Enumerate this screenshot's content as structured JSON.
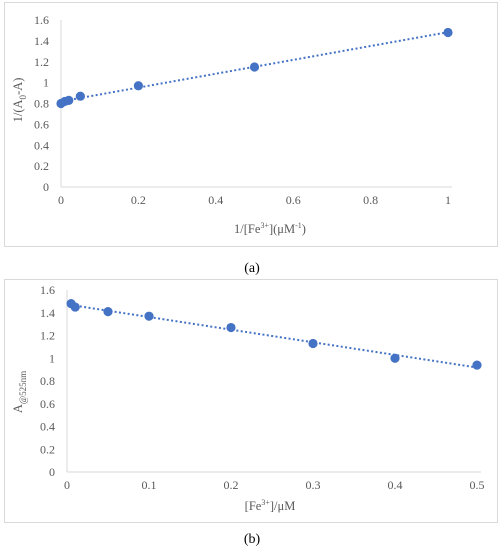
{
  "colors": {
    "series": "#4472c4",
    "frame": "#d9d9d9",
    "text": "#595959"
  },
  "chart_data": [
    {
      "type": "scatter",
      "caption": "(a)",
      "xlabel_parts": [
        "1/[Fe",
        "3+",
        "](μM",
        "-1",
        ")"
      ],
      "ylabel_parts": [
        "1/(A",
        "0",
        "-A)"
      ],
      "xlim": [
        0,
        1
      ],
      "ylim": [
        0,
        1.6
      ],
      "xticks": [
        0,
        0.2,
        0.4,
        0.6,
        0.8,
        1
      ],
      "xtick_labels": [
        "0",
        "0.2",
        "0.4",
        "0.6",
        "0.8",
        "1"
      ],
      "yticks": [
        0,
        0.2,
        0.4,
        0.6,
        0.8,
        1,
        1.2,
        1.4,
        1.6
      ],
      "ytick_labels": [
        "0",
        "0.2",
        "0.4",
        "0.6",
        "0.8",
        "1",
        "1.2",
        "1.4",
        "1.6"
      ],
      "grid": false,
      "trendline": "linear",
      "points": [
        {
          "x": 0.0,
          "y": 0.8
        },
        {
          "x": 0.01,
          "y": 0.82
        },
        {
          "x": 0.02,
          "y": 0.83
        },
        {
          "x": 0.05,
          "y": 0.87
        },
        {
          "x": 0.2,
          "y": 0.97
        },
        {
          "x": 0.5,
          "y": 1.15
        },
        {
          "x": 1.0,
          "y": 1.48
        }
      ]
    },
    {
      "type": "scatter",
      "caption": "(b)",
      "xlabel_parts": [
        "[Fe",
        "3+",
        "]/μM"
      ],
      "ylabel_parts": [
        "A",
        "@525nm"
      ],
      "xlim": [
        0,
        0.5
      ],
      "ylim": [
        0,
        1.6
      ],
      "xticks": [
        0,
        0.1,
        0.2,
        0.3,
        0.4,
        0.5
      ],
      "xtick_labels": [
        "0",
        "0.1",
        "0.2",
        "0.3",
        "0.4",
        "0.5"
      ],
      "yticks": [
        0,
        0.2,
        0.4,
        0.6,
        0.8,
        1,
        1.2,
        1.4,
        1.6
      ],
      "ytick_labels": [
        "0",
        "0.2",
        "0.4",
        "0.6",
        "0.8",
        "1",
        "1.2",
        "1.4",
        "1.6"
      ],
      "grid": false,
      "trendline": "linear",
      "points": [
        {
          "x": 0.005,
          "y": 1.48
        },
        {
          "x": 0.01,
          "y": 1.45
        },
        {
          "x": 0.05,
          "y": 1.41
        },
        {
          "x": 0.1,
          "y": 1.37
        },
        {
          "x": 0.2,
          "y": 1.27
        },
        {
          "x": 0.3,
          "y": 1.13
        },
        {
          "x": 0.4,
          "y": 1.0
        },
        {
          "x": 0.5,
          "y": 0.94
        }
      ]
    }
  ]
}
